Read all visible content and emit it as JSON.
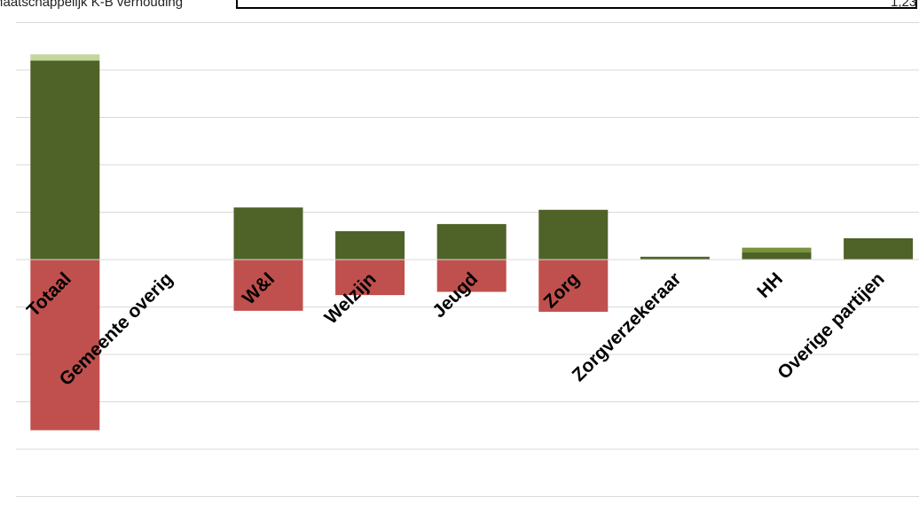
{
  "header": {
    "label": "Maatschappelijk K-B verhouding",
    "value": "1,23"
  },
  "colors": {
    "dark_green": "#4f6228",
    "light_green": "#c4d79b",
    "mid_green": "#77933c",
    "red": "#c0504d",
    "grid": "#d9d9d9"
  },
  "chart_data": {
    "type": "bar",
    "stacked": true,
    "ylim": [
      -5,
      5
    ],
    "grid": true,
    "categories": [
      "Totaal",
      "Gemeente overig",
      "W&I",
      "Welzijn",
      "Jeugd",
      "Zorg",
      "Zorgverzekeraar",
      "HH",
      "Overige partijen"
    ],
    "series": [
      {
        "color": "dark_green",
        "values": [
          4.2,
          0,
          1.1,
          0.6,
          0.75,
          1.05,
          0.06,
          0.15,
          0.45
        ]
      },
      {
        "color": "light_green",
        "values": [
          0.13,
          0,
          0,
          0,
          0,
          0,
          0,
          0,
          0
        ]
      },
      {
        "color": "mid_green",
        "values": [
          0,
          0,
          0,
          0,
          0,
          0,
          0,
          0.1,
          0
        ]
      },
      {
        "color": "red",
        "values": [
          -3.6,
          0,
          -1.08,
          -0.75,
          -0.68,
          -1.1,
          0,
          0,
          0
        ]
      }
    ]
  }
}
